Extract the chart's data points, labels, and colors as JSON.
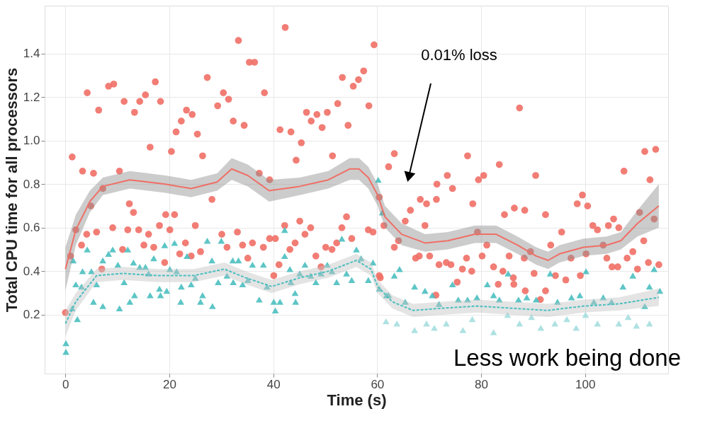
{
  "chart_data": {
    "type": "scatter",
    "xlabel": "Time (s)",
    "ylabel": "Total CPU time for all processors",
    "xlim": [
      -4,
      116
    ],
    "ylim": [
      -0.07,
      1.62
    ],
    "xticks": [
      0,
      20,
      40,
      60,
      80,
      100
    ],
    "yticks": [
      0.2,
      0.4,
      0.6,
      0.8,
      {
        "value": 1,
        "label": "1.0"
      },
      1.2,
      1.4
    ],
    "grid": true,
    "annotations": [
      "0.01% loss",
      "Less work being done"
    ],
    "series": [
      {
        "marker": "circle",
        "color": "#ef6f66",
        "x": [
          1.3,
          3.3,
          5.4,
          4.2,
          6.4,
          8.3,
          9.3,
          11.3,
          13.3,
          14.3,
          15.4,
          17.3,
          18.3,
          16.3,
          20.4,
          21.3,
          22.3,
          23.3,
          24.4,
          25.4,
          26.4,
          27.3,
          29.3,
          30.4,
          31.4,
          32.3,
          34.4,
          33.3,
          35.4,
          36.4,
          38.3,
          42.3,
          41.3,
          43.4,
          45.4,
          44.4,
          46.4,
          47.3,
          48.4,
          49.4,
          50.4,
          52.4,
          51.4,
          53.3,
          54.4,
          55.4,
          56.4,
          57.4,
          58.4,
          59.4,
          0,
          1,
          2,
          3.1,
          4.1,
          6,
          4.9,
          7.2,
          7,
          9.1,
          10.4,
          11,
          12,
          12.3,
          13.1,
          14.1,
          15.1,
          16,
          17,
          18.1,
          19.1,
          19.3,
          20.1,
          21,
          22,
          23.1,
          24.2,
          25,
          26,
          28.2,
          30.1,
          31.1,
          33.1,
          34.1,
          35.1,
          36,
          37.3,
          38.1,
          39.3,
          39.3,
          40.4,
          40.1,
          41.1,
          42.2,
          43.2,
          44.2,
          45.1,
          46.1,
          47.2,
          48.2,
          49.2,
          50.1,
          51.3,
          52.2,
          53.2,
          54.1,
          55.1,
          58.3,
          59.2,
          60.4,
          60.4,
          61.3,
          62.2,
          63.3,
          77.4,
          83.5,
          87.4,
          73.5,
          71.5,
          79.5,
          80.5,
          90.5,
          74.5,
          68.3,
          69.5,
          71.4,
          66.4,
          65.4,
          69.2,
          78.4,
          84.5,
          86.4,
          88.4,
          92.4,
          95.5,
          98.5,
          99.5,
          100.5,
          107.5,
          111.5,
          113.6,
          112.5,
          110.5,
          101.5,
          102.4,
          104.5,
          105.5,
          106.5,
          111.3,
          113.3,
          63.3,
          64.1,
          67.4,
          68.1,
          70.1,
          71.9,
          73.3,
          74.2,
          77.2,
          76.4,
          78.2,
          79.3,
          80.2,
          81.1,
          82.4,
          85.4,
          84.2,
          86.2,
          86.3,
          83.3,
          88.3,
          89.5,
          90.2,
          91.4,
          92.4,
          93.4,
          94.3,
          96.3,
          97.3,
          99.1,
          100.2,
          103.5,
          104.2,
          105.2,
          106.3,
          108.1,
          109.2,
          110.1,
          112.2,
          114.2,
          60.6,
          71.3,
          75.4,
          88.5
        ],
        "values": [
          0.925,
          0.86,
          0.85,
          1.22,
          1.14,
          1.25,
          1.26,
          1.18,
          1.13,
          1.18,
          1.21,
          1.27,
          1.18,
          0.97,
          0.95,
          1.04,
          1.09,
          1.14,
          1.12,
          1.03,
          0.93,
          1.29,
          1.16,
          1.22,
          1.19,
          1.09,
          1.07,
          1.46,
          1.36,
          1.36,
          1.22,
          1.52,
          1.05,
          1.04,
          0.99,
          0.91,
          1.13,
          1.09,
          1.12,
          1.06,
          1.13,
          1.17,
          0.93,
          1.29,
          1.07,
          1.25,
          1.28,
          1.32,
          1.16,
          1.44,
          0.21,
          0.47,
          0.59,
          0.52,
          0.57,
          0.58,
          0.7,
          0.78,
          0.41,
          0.6,
          0.86,
          0.5,
          0.59,
          0.71,
          0.67,
          0.59,
          0.52,
          0.57,
          0.51,
          0.61,
          0.44,
          0.66,
          0.59,
          0.66,
          0.48,
          0.53,
          0.47,
          0.61,
          0.49,
          0.73,
          0.57,
          0.51,
          0.58,
          0.52,
          0.46,
          0.53,
          0.85,
          0.51,
          0.82,
          0.55,
          0.55,
          0.38,
          0.43,
          0.61,
          0.5,
          0.53,
          0.63,
          0.57,
          0.6,
          0.47,
          0.42,
          0.51,
          0.5,
          0.53,
          0.6,
          0.65,
          0.55,
          0.59,
          0.58,
          0.38,
          0.74,
          0.61,
          0.88,
          0.94,
          0.93,
          0.89,
          1.15,
          0.84,
          0.8,
          0.82,
          0.84,
          0.84,
          0.78,
          0.73,
          0.71,
          0.73,
          0.68,
          0.63,
          0.61,
          0.71,
          0.66,
          0.69,
          0.68,
          0.66,
          0.58,
          0.71,
          0.75,
          0.7,
          0.86,
          0.95,
          0.96,
          0.82,
          0.67,
          0.61,
          0.59,
          0.61,
          0.64,
          0.6,
          0.54,
          0.64,
          0.51,
          0.54,
          0.46,
          0.47,
          0.47,
          0.43,
          0.44,
          0.43,
          0.46,
          0.41,
          0.4,
          0.58,
          0.47,
          0.52,
          0.42,
          0.47,
          0.4,
          0.37,
          0.34,
          0.34,
          0.46,
          0.49,
          0.39,
          0.27,
          0.31,
          0.52,
          0.38,
          0.36,
          0.46,
          0.38,
          0.48,
          0.52,
          0.46,
          0.42,
          0.42,
          0.46,
          0.49,
          0.41,
          0.44,
          0.43,
          0.37,
          0.29,
          0.35,
          0.31
        ]
      },
      {
        "marker": "triangle",
        "color": "#4bbfc0",
        "x": [
          0.1,
          0.1,
          1.3,
          2.3,
          1.5,
          2,
          3.1,
          3.3,
          4.2,
          5,
          5.4,
          6,
          7.2,
          7.2,
          8.3,
          9.1,
          10.1,
          10.4,
          11.3,
          12,
          12.4,
          13.1,
          13.3,
          14.3,
          15.4,
          16,
          16.3,
          17,
          18.1,
          18.3,
          19.1,
          19.5,
          20.1,
          21,
          21.4,
          22.2,
          22.3,
          23.4,
          24.2,
          25,
          26,
          26.4,
          27.3,
          28.2,
          28.3,
          29.4,
          30,
          31.1,
          32.2,
          32.3,
          33.3,
          34.1,
          35.1,
          36,
          37.3,
          38.1,
          38.8,
          40.1,
          40.4,
          41.3,
          42.2,
          42.2,
          43.2,
          43.4,
          44.2,
          44.3,
          45.1,
          46.1,
          47.2,
          48.2,
          49.2,
          50.4,
          51.3,
          52.2,
          53.2,
          54.1,
          55.1,
          56,
          56.9,
          58.3,
          59.2,
          60.2,
          60.4,
          61,
          62.2,
          61.8,
          63.3,
          64.3,
          65.4,
          67.2,
          69.2,
          70.6,
          71.9,
          74.5,
          75.6,
          77.4,
          79.2,
          81.2,
          82.4,
          83.5,
          85.2,
          87.2,
          88.8,
          90.6,
          93.3,
          94.7,
          97.4,
          99,
          100.2,
          101.7,
          103.5,
          105.1,
          107.3,
          109.2,
          111.5,
          112.4,
          113.3,
          114.4
        ],
        "values": [
          0.07,
          0.03,
          0.23,
          0.18,
          0.45,
          0.34,
          0.33,
          0.4,
          0.5,
          0.4,
          0.26,
          0.34,
          0.24,
          0.45,
          0.48,
          0.5,
          0.43,
          0.23,
          0.35,
          0.5,
          0.26,
          0.44,
          0.29,
          0.42,
          0.42,
          0.39,
          0.29,
          0.46,
          0.32,
          0.29,
          0.52,
          0.31,
          0.41,
          0.53,
          0.4,
          0.26,
          0.33,
          0.47,
          0.34,
          0.37,
          0.26,
          0.29,
          0.54,
          0.45,
          0.24,
          0.35,
          0.54,
          0.38,
          0.45,
          0.35,
          0.45,
          0.34,
          0.36,
          0.43,
          0.27,
          0.43,
          0.33,
          0.26,
          0.22,
          0.26,
          0.59,
          0.47,
          0.41,
          0.35,
          0.3,
          0.26,
          0.39,
          0.43,
          0.38,
          0.35,
          0.39,
          0.43,
          0.4,
          0.35,
          0.55,
          0.39,
          0.36,
          0.5,
          0.46,
          0.36,
          0.44,
          0.82,
          0.32,
          0.67,
          0.29,
          0.29,
          0.38,
          0.41,
          0.26,
          0.33,
          0.31,
          0.29,
          0.25,
          0.34,
          0.27,
          0.27,
          0.28,
          0.34,
          0.29,
          0.27,
          0.39,
          0.27,
          0.28,
          0.27,
          0.39,
          0.26,
          0.28,
          0.29,
          0.4,
          0.26,
          0.28,
          0.26,
          0.33,
          0.38,
          0.24,
          0.33,
          0.41,
          0.31
        ]
      },
      {
        "marker": "triangle",
        "color": "#a5dedf",
        "x": [
          61.7,
          63.8,
          67.2,
          69.5,
          71,
          73.3,
          76.5,
          78.3,
          82.4,
          85.1,
          87.4,
          89.7,
          91.5,
          94.2,
          96.5,
          98.3,
          100.1,
          102.4,
          106.5,
          108.3,
          109.9,
          112.4
        ],
        "values": [
          0.17,
          0.16,
          0.13,
          0.16,
          0.14,
          0.16,
          0.13,
          0.18,
          0.12,
          0.2,
          0.16,
          0.19,
          0.14,
          0.16,
          0.18,
          0.14,
          0.2,
          0.16,
          0.16,
          0.19,
          0.15,
          0.16
        ]
      },
      {
        "type": "line",
        "line_style": "solid",
        "color": "#ef6f66",
        "x": [
          0,
          2,
          4.7,
          7.2,
          12.4,
          19.2,
          24.2,
          29.2,
          32,
          35.1,
          39.2,
          45.1,
          50.6,
          54.7,
          56.5,
          58.3,
          60.1,
          61.5,
          64.7,
          69.2,
          73.6,
          78.8,
          82.9,
          87,
          90.6,
          92.9,
          95.1,
          99.7,
          104.2,
          106.9,
          110.1,
          114.2
        ],
        "values": [
          0.41,
          0.59,
          0.72,
          0.79,
          0.82,
          0.8,
          0.78,
          0.81,
          0.87,
          0.84,
          0.77,
          0.79,
          0.82,
          0.87,
          0.87,
          0.83,
          0.75,
          0.65,
          0.57,
          0.53,
          0.54,
          0.57,
          0.57,
          0.52,
          0.47,
          0.45,
          0.48,
          0.51,
          0.52,
          0.54,
          0.62,
          0.7
        ],
        "lower": [
          0.31,
          0.52,
          0.67,
          0.75,
          0.78,
          0.76,
          0.74,
          0.77,
          0.82,
          0.79,
          0.72,
          0.75,
          0.78,
          0.82,
          0.82,
          0.78,
          0.7,
          0.6,
          0.52,
          0.49,
          0.5,
          0.53,
          0.53,
          0.48,
          0.43,
          0.41,
          0.44,
          0.47,
          0.48,
          0.5,
          0.56,
          0.6
        ],
        "upper": [
          0.51,
          0.66,
          0.77,
          0.83,
          0.86,
          0.84,
          0.82,
          0.85,
          0.92,
          0.89,
          0.82,
          0.83,
          0.86,
          0.92,
          0.92,
          0.88,
          0.8,
          0.7,
          0.62,
          0.57,
          0.58,
          0.61,
          0.61,
          0.56,
          0.51,
          0.49,
          0.52,
          0.55,
          0.56,
          0.58,
          0.68,
          0.8
        ]
      },
      {
        "type": "line",
        "line_style": "dashed",
        "color": "#4bbfc0",
        "x": [
          0,
          2,
          6,
          11,
          17.9,
          24.7,
          30.6,
          34.7,
          39.7,
          45.1,
          50.6,
          56,
          58.8,
          60.1,
          62.9,
          66.9,
          72.4,
          79.2,
          86,
          92.8,
          99.7,
          106.5,
          114.2
        ],
        "values": [
          0.16,
          0.26,
          0.38,
          0.39,
          0.38,
          0.38,
          0.41,
          0.37,
          0.33,
          0.37,
          0.4,
          0.45,
          0.41,
          0.33,
          0.26,
          0.22,
          0.23,
          0.24,
          0.23,
          0.22,
          0.24,
          0.25,
          0.28
        ],
        "lower": [
          0.1,
          0.22,
          0.35,
          0.36,
          0.35,
          0.35,
          0.38,
          0.34,
          0.3,
          0.34,
          0.37,
          0.42,
          0.38,
          0.3,
          0.23,
          0.19,
          0.2,
          0.21,
          0.2,
          0.19,
          0.21,
          0.22,
          0.24
        ],
        "upper": [
          0.22,
          0.3,
          0.41,
          0.42,
          0.41,
          0.41,
          0.44,
          0.4,
          0.36,
          0.4,
          0.43,
          0.48,
          0.44,
          0.36,
          0.29,
          0.25,
          0.26,
          0.27,
          0.26,
          0.25,
          0.27,
          0.28,
          0.32
        ]
      }
    ]
  }
}
